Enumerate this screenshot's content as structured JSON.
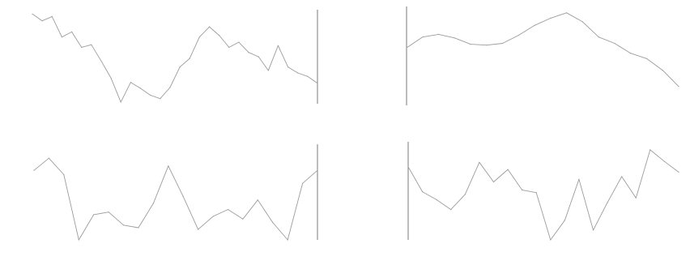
{
  "chart_data": [
    {
      "type": "line",
      "xlabel": "",
      "ylabel": "",
      "ylim": [
        0,
        11
      ],
      "y_ticks": [
        "",
        "",
        "",
        "",
        "",
        ""
      ],
      "x_ticks": [
        "",
        "",
        "",
        "",
        "",
        "",
        "",
        "",
        "",
        ""
      ],
      "series": [
        {
          "values": [
            10.5,
            9.7,
            10.2,
            7.8,
            8.4,
            6.6,
            6.9,
            5.0,
            3.0,
            0.2,
            2.5,
            1.8,
            1.0,
            0.6,
            1.9,
            4.3,
            5.3,
            7.8,
            9.0,
            8.0,
            6.6,
            7.2,
            6.0,
            5.5,
            3.9,
            6.8,
            4.3,
            3.6,
            3.2,
            2.4
          ]
        }
      ]
    },
    {
      "type": "line",
      "xlabel": "",
      "ylabel": "",
      "ylim": [
        0,
        11
      ],
      "y_ticks": [
        "",
        "",
        "",
        "",
        "",
        "",
        ""
      ],
      "x_ticks": [
        "",
        "",
        "",
        "",
        "",
        "",
        "",
        "",
        ""
      ],
      "series": [
        {
          "values": [
            6.4,
            7.6,
            7.9,
            7.5,
            6.8,
            6.7,
            6.9,
            7.8,
            8.9,
            9.7,
            10.3,
            9.3,
            7.6,
            6.9,
            5.8,
            5.2,
            3.9,
            2.1
          ]
        }
      ]
    },
    {
      "type": "line",
      "xlabel": "",
      "ylabel": "",
      "ylim": [
        0,
        11
      ],
      "y_ticks": [
        "",
        "",
        "",
        "",
        "",
        ""
      ],
      "x_ticks": [
        "",
        "",
        "",
        "",
        "",
        "",
        "",
        "",
        "",
        ""
      ],
      "series": [
        {
          "values": [
            8.0,
            9.4,
            7.5,
            0.0,
            2.9,
            3.2,
            1.7,
            1.4,
            4.2,
            8.5,
            5.0,
            1.2,
            2.7,
            3.5,
            2.4,
            4.6,
            2.0,
            0.0,
            6.5,
            8.0
          ]
        }
      ]
    },
    {
      "type": "line",
      "xlabel": "",
      "ylabel": "",
      "ylim": [
        0,
        11
      ],
      "y_ticks": [
        "",
        "",
        "",
        "",
        "",
        "",
        "",
        ""
      ],
      "x_ticks": [
        "",
        "",
        "",
        "",
        "",
        "",
        "",
        "",
        "",
        "",
        ""
      ],
      "series": [
        {
          "values": [
            8.2,
            5.4,
            4.5,
            3.4,
            5.1,
            8.7,
            6.5,
            7.9,
            5.6,
            5.3,
            0.0,
            2.2,
            6.8,
            1.1,
            4.2,
            7.1,
            4.7,
            10.1,
            8.8,
            7.6
          ]
        }
      ]
    }
  ]
}
